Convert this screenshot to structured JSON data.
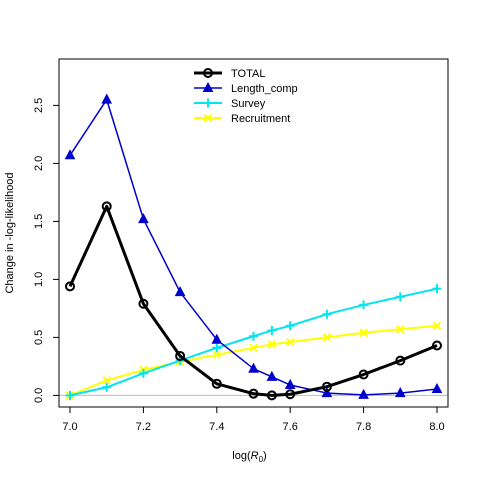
{
  "chart_data": {
    "type": "line",
    "xlabel_prefix": "log(",
    "xlabel_var": "R",
    "xlabel_sub": "0",
    "xlabel_suffix": ")",
    "ylabel": "Change in -log-likelihood",
    "xlim": [
      6.97,
      8.03
    ],
    "ylim": [
      -0.1,
      2.9
    ],
    "x_ticks": [
      7.0,
      7.2,
      7.4,
      7.6,
      7.8,
      8.0
    ],
    "x_tick_labels": [
      "7.0",
      "7.2",
      "7.4",
      "7.6",
      "7.8",
      "8.0"
    ],
    "y_ticks": [
      0.0,
      0.5,
      1.0,
      1.5,
      2.0,
      2.5
    ],
    "y_tick_labels": [
      "0.0",
      "0.5",
      "1.0",
      "1.5",
      "2.0",
      "2.5"
    ],
    "zero_line": true,
    "zero_line_color": "#bbbbbb",
    "legend_position": "top-center",
    "x": [
      7.0,
      7.1,
      7.2,
      7.3,
      7.4,
      7.5,
      7.55,
      7.6,
      7.7,
      7.8,
      7.9,
      8.0
    ],
    "series": [
      {
        "name": "TOTAL",
        "color": "#000000",
        "marker": "circle",
        "line_width": 3,
        "values": [
          0.94,
          1.63,
          0.79,
          0.34,
          0.1,
          0.015,
          0.0,
          0.01,
          0.075,
          0.18,
          0.3,
          0.43
        ]
      },
      {
        "name": "Length_comp",
        "color": "#0000cc",
        "marker": "triangle",
        "line_width": 1.5,
        "values": [
          2.07,
          2.55,
          1.52,
          0.89,
          0.48,
          0.23,
          0.16,
          0.09,
          0.02,
          0.005,
          0.02,
          0.055
        ]
      },
      {
        "name": "Survey",
        "color": "#00e5ee",
        "marker": "plus",
        "line_width": 2,
        "values": [
          0.0,
          0.07,
          0.19,
          0.3,
          0.41,
          0.51,
          0.56,
          0.6,
          0.7,
          0.78,
          0.85,
          0.92
        ]
      },
      {
        "name": "Recruitment",
        "color": "#ffff00",
        "marker": "cross",
        "line_width": 2,
        "values": [
          0.0,
          0.13,
          0.22,
          0.29,
          0.35,
          0.41,
          0.44,
          0.46,
          0.5,
          0.54,
          0.57,
          0.6
        ]
      }
    ]
  }
}
